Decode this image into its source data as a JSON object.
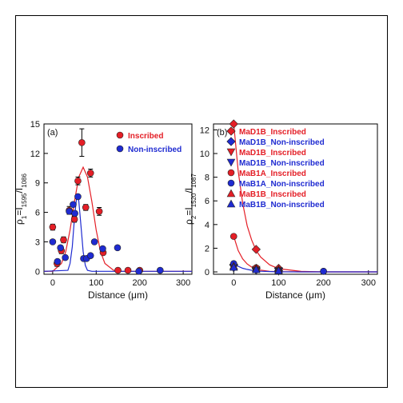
{
  "chart_data": [
    {
      "type": "scatter",
      "panel_label": "(a)",
      "xlabel": "Distance (μm)",
      "ylabel": [
        [
          "ρ",
          "1"
        ],
        [
          "=I",
          "1595"
        ],
        [
          "/I",
          "1086"
        ]
      ],
      "xlim": [
        -20,
        320
      ],
      "xticks": [
        0,
        100,
        200,
        300
      ],
      "ylim": [
        -0.3,
        15
      ],
      "yticks": [
        0,
        3,
        6,
        9,
        12,
        15
      ],
      "legend": "upper right",
      "series": [
        {
          "name": "Inscribed",
          "color": "#e41e26",
          "marker": "circle",
          "x": [
            0,
            10,
            20,
            25,
            38,
            50,
            58,
            67,
            76,
            87,
            107,
            116,
            150,
            173,
            200
          ],
          "values": [
            4.5,
            0.8,
            2.1,
            3.2,
            6.2,
            5.3,
            9.2,
            13.1,
            6.5,
            10.0,
            6.1,
            1.9,
            0.1,
            0.1,
            0.1
          ],
          "errors": [
            0.3,
            0.3,
            0.3,
            0.3,
            0.4,
            0.3,
            0.4,
            1.4,
            0.3,
            0.4,
            0.4,
            0.2,
            0.1,
            0.1,
            0.1
          ],
          "fit_x": [
            -20,
            0,
            20,
            30,
            40,
            50,
            60,
            70,
            80,
            90,
            100,
            110,
            120,
            140,
            160,
            320
          ],
          "fit_values": [
            0.0,
            0.0,
            0.8,
            2.0,
            4.2,
            7.1,
            9.6,
            10.6,
            9.6,
            7.1,
            4.2,
            2.0,
            0.8,
            0.1,
            0.0,
            0.0
          ]
        },
        {
          "name": "Non-inscribed",
          "color": "#1f2bd1",
          "marker": "circle",
          "x": [
            0,
            11,
            18,
            29,
            38,
            47,
            51,
            58,
            71,
            78,
            87,
            96,
            115,
            149,
            198,
            247
          ],
          "values": [
            3.0,
            1.0,
            2.4,
            1.4,
            6.1,
            6.8,
            5.9,
            7.6,
            1.3,
            1.3,
            1.6,
            3.0,
            2.3,
            2.4,
            0.0,
            0.1
          ],
          "fit_x": [
            -20,
            35,
            40,
            45,
            50,
            55,
            57,
            60,
            65,
            70,
            75,
            80,
            90,
            320
          ],
          "fit_values": [
            0.0,
            0.1,
            0.8,
            2.5,
            5.4,
            7.5,
            7.7,
            7.2,
            4.6,
            2.0,
            0.6,
            0.1,
            0.0,
            0.0
          ]
        }
      ]
    },
    {
      "type": "scatter",
      "panel_label": "(b)",
      "xlabel": "Distance (μm)",
      "ylabel": [
        [
          "ρ",
          "2"
        ],
        [
          "=I",
          "1520"
        ],
        [
          "/I",
          "1087"
        ]
      ],
      "xlim": [
        -45,
        320
      ],
      "xticks": [
        0,
        100,
        200,
        300
      ],
      "ylim": [
        -0.2,
        12.5
      ],
      "yticks": [
        0,
        2,
        4,
        6,
        8,
        10,
        12
      ],
      "legend": "upper right",
      "series": [
        {
          "name": "MaD1B_Inscribed",
          "color": "#e41e26",
          "marker": "diamond",
          "x": [
            0,
            50,
            100
          ],
          "values": [
            12.5,
            1.9,
            0.3
          ],
          "fit_x": [
            0,
            10,
            20,
            30,
            40,
            50,
            60,
            80,
            100,
            150,
            200,
            320
          ],
          "fit_values": [
            12.5,
            8.5,
            5.8,
            3.9,
            2.7,
            1.8,
            1.25,
            0.6,
            0.27,
            0.04,
            0.0,
            0.0
          ]
        },
        {
          "name": "MaD1B_Non-inscribed",
          "color": "#1f2bd1",
          "marker": "diamond",
          "x": [
            0,
            50,
            100
          ],
          "values": [
            0.6,
            0.3,
            0.1
          ]
        },
        {
          "name": "MaD1B_Inscribed",
          "color": "#e41e26",
          "marker": "triangle-down",
          "x": [
            0,
            50,
            100
          ],
          "values": [
            0.4,
            0.2,
            0.1
          ]
        },
        {
          "name": "MaD1B_Non-inscribed",
          "color": "#1f2bd1",
          "marker": "triangle-down",
          "x": [
            0,
            50,
            100
          ],
          "values": [
            0.3,
            0.1,
            0.05
          ]
        },
        {
          "name": "MaB1A_Inscribed",
          "color": "#e41e26",
          "marker": "circle",
          "x": [
            0,
            50,
            100,
            200
          ],
          "values": [
            3.0,
            0.35,
            0.1,
            0.05
          ],
          "fit_x": [
            0,
            10,
            20,
            30,
            40,
            50,
            60,
            80,
            100,
            150,
            200,
            320
          ],
          "fit_values": [
            3.0,
            1.8,
            1.1,
            0.67,
            0.41,
            0.25,
            0.15,
            0.05,
            0.02,
            0.0,
            0.0,
            0.0
          ]
        },
        {
          "name": "MaB1A_Non-inscribed",
          "color": "#1f2bd1",
          "marker": "circle",
          "x": [
            0,
            50,
            100,
            200
          ],
          "values": [
            0.7,
            0.2,
            0.1,
            0.05
          ],
          "fit_x": [
            0,
            10,
            20,
            30,
            40,
            50,
            60,
            80,
            100,
            150,
            200,
            320
          ],
          "fit_values": [
            0.7,
            0.47,
            0.31,
            0.21,
            0.14,
            0.09,
            0.06,
            0.03,
            0.01,
            0.0,
            0.0,
            0.0
          ]
        },
        {
          "name": "MaB1B_Inscribed",
          "color": "#e41e26",
          "marker": "triangle-up",
          "x": [
            0,
            50,
            100
          ],
          "values": [
            0.5,
            0.3,
            0.2
          ]
        },
        {
          "name": "MaB1B_Non-inscribed",
          "color": "#1f2bd1",
          "marker": "triangle-up",
          "x": [
            0,
            50,
            100
          ],
          "values": [
            0.4,
            0.2,
            0.1
          ]
        }
      ]
    }
  ]
}
